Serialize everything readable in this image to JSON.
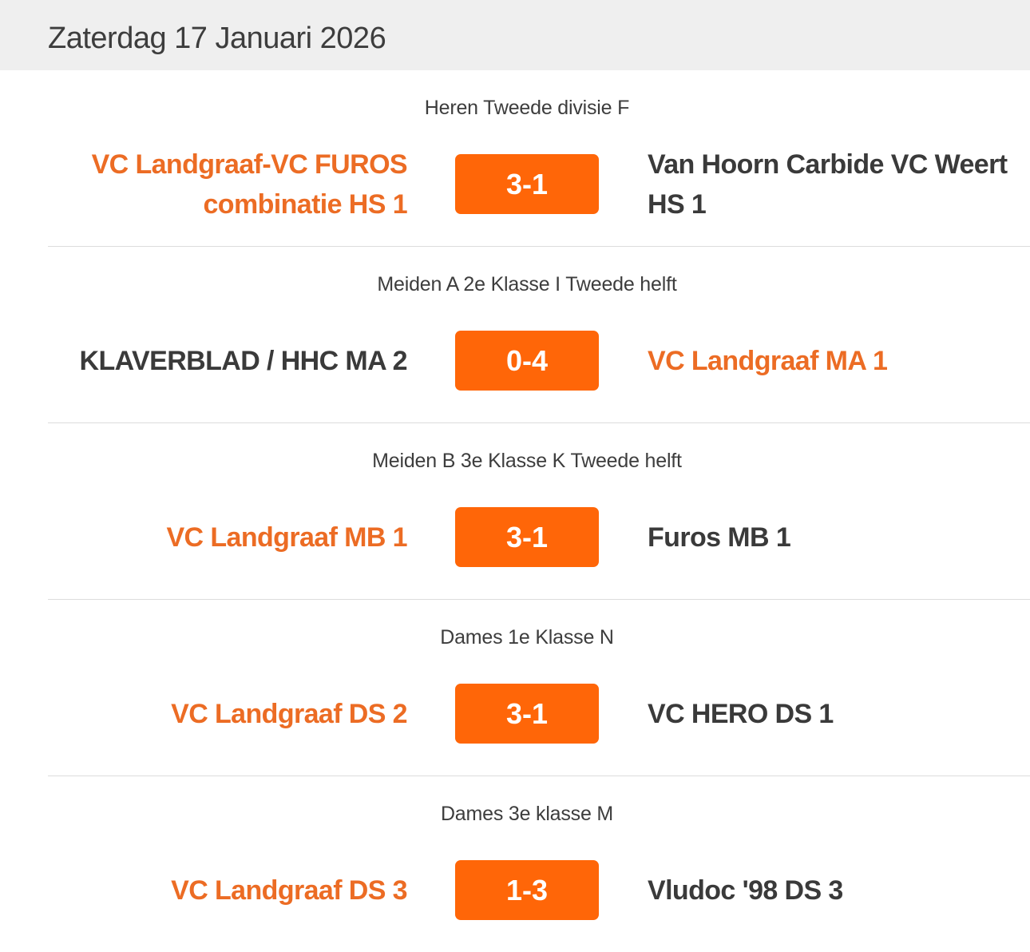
{
  "header": {
    "date": "Zaterdag 17 Januari 2026"
  },
  "colors": {
    "accent": "#ff6608",
    "own_team": "#ec6c24",
    "text": "#3a3a3a",
    "header_bg": "#efefef"
  },
  "matches": [
    {
      "category": "Heren Tweede divisie F",
      "home": "VC Landgraaf-VC FUROS combinatie HS 1",
      "score": "3-1",
      "away": "Van Hoorn Carbide VC Weert HS 1",
      "own": "home"
    },
    {
      "category": "Meiden A 2e Klasse I Tweede helft",
      "home": "KLAVERBLAD / HHC MA 2",
      "score": "0-4",
      "away": "VC Landgraaf MA 1",
      "own": "away"
    },
    {
      "category": "Meiden B 3e Klasse K Tweede helft",
      "home": "VC Landgraaf MB 1",
      "score": "3-1",
      "away": "Furos MB 1",
      "own": "home"
    },
    {
      "category": "Dames 1e Klasse N",
      "home": "VC Landgraaf DS 2",
      "score": "3-1",
      "away": "VC HERO DS 1",
      "own": "home"
    },
    {
      "category": "Dames 3e klasse M",
      "home": "VC Landgraaf DS 3",
      "score": "1-3",
      "away": "Vludoc '98 DS 3",
      "own": "home"
    }
  ]
}
